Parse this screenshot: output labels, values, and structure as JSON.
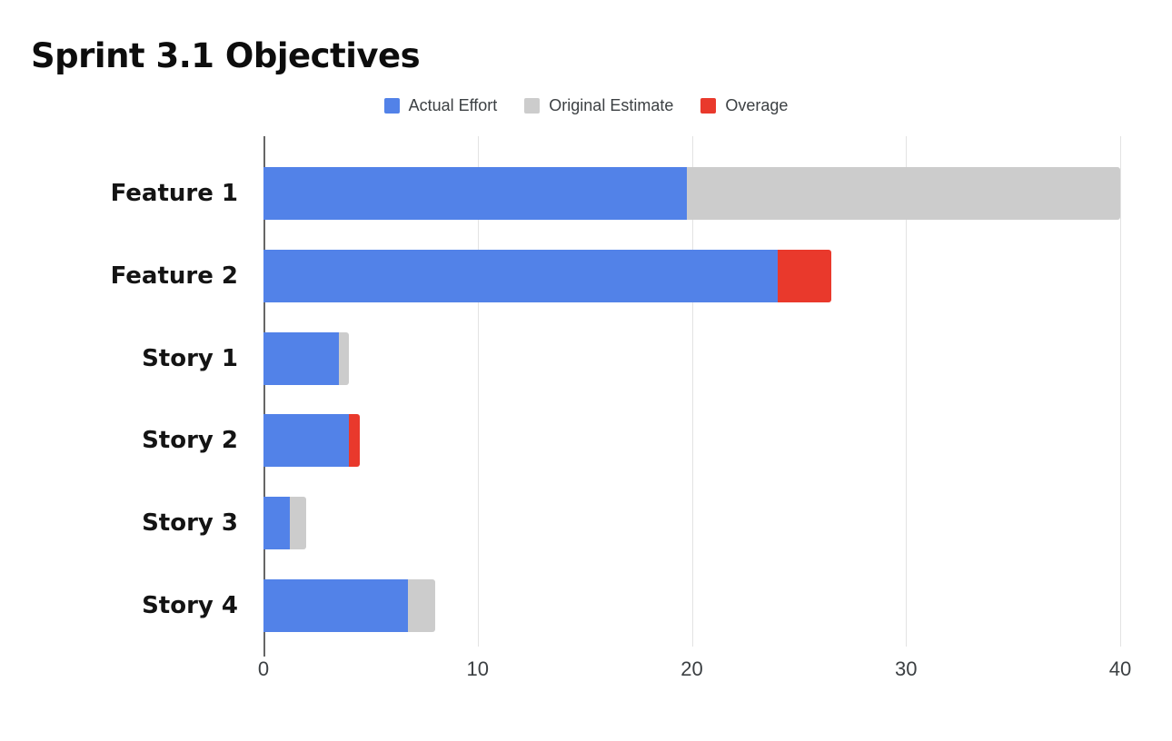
{
  "title": "Sprint 3.1 Objectives",
  "colors": {
    "actual_effort": "#5282e8",
    "original_estimate": "#cccccc",
    "overage": "#e9392c",
    "axis_line": "#666666",
    "gridline": "#e3e3e3",
    "tick_text": "#3c4043",
    "title_text": "#0d0d0d"
  },
  "legend": {
    "position": "top-center",
    "items": [
      {
        "label": "Actual Effort",
        "color": "#5282e8"
      },
      {
        "label": "Original Estimate",
        "color": "#cccccc"
      },
      {
        "label": "Overage",
        "color": "#e9392c"
      }
    ]
  },
  "chart_data": {
    "type": "bar",
    "orientation": "horizontal",
    "stacked": true,
    "title": "Sprint 3.1 Objectives",
    "categories": [
      "Feature 1",
      "Feature 2",
      "Story 1",
      "Story 2",
      "Story 3",
      "Story 4"
    ],
    "series": [
      {
        "name": "Actual Effort",
        "color": "#5282e8",
        "values": [
          19.75,
          24,
          3.5,
          4,
          1.25,
          6.75
        ]
      },
      {
        "name": "Original Estimate",
        "color": "#cccccc",
        "values": [
          20.25,
          0,
          0.5,
          0,
          0.75,
          1.25
        ]
      },
      {
        "name": "Overage",
        "color": "#e9392c",
        "values": [
          0,
          2.5,
          0,
          0.5,
          0,
          0
        ]
      }
    ],
    "bar_totals": [
      40,
      26.5,
      4,
      4.5,
      2,
      8
    ],
    "xlabel": "",
    "ylabel": "",
    "xlim": [
      0,
      40
    ],
    "xticks": [
      0,
      10,
      20,
      30,
      40
    ],
    "grid": true,
    "legend_position": "top"
  }
}
